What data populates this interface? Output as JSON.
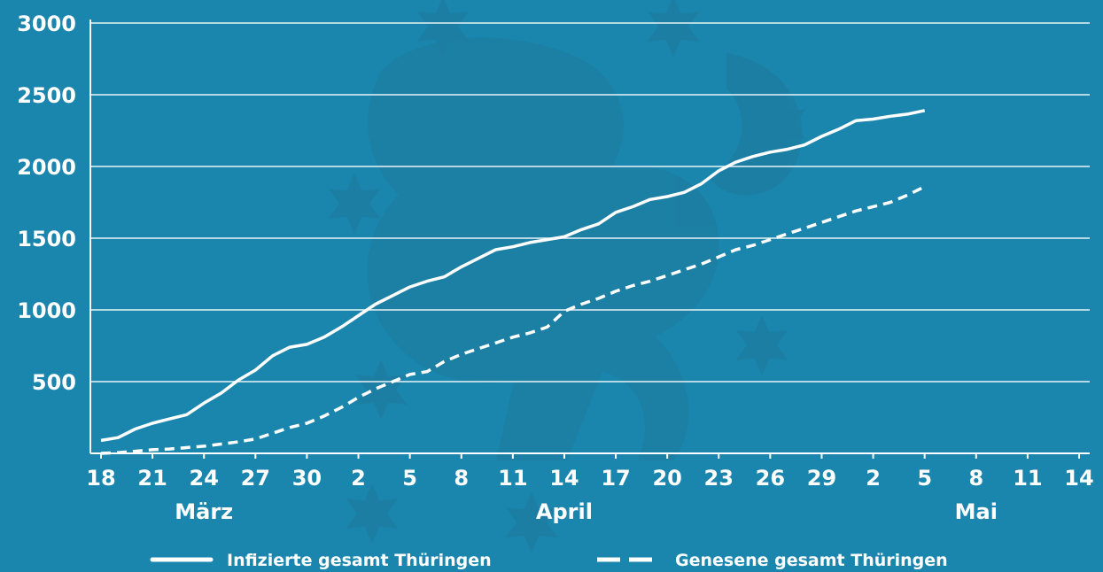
{
  "colors": {
    "background": "#1a86ad",
    "foreground": "#ffffff",
    "watermark": "#1d7ea3"
  },
  "chart_data": {
    "type": "line",
    "title": "",
    "xlabel": "",
    "ylabel": "",
    "ylim": [
      0,
      3000
    ],
    "xlim": [
      "2020-03-18",
      "2020-05-14"
    ],
    "y_ticks": [
      "500",
      "1000",
      "1500",
      "2000",
      "2500",
      "3000"
    ],
    "x_ticks": [
      {
        "date": "2020-03-18",
        "label": "18"
      },
      {
        "date": "2020-03-21",
        "label": "21"
      },
      {
        "date": "2020-03-24",
        "label": "24"
      },
      {
        "date": "2020-03-27",
        "label": "27"
      },
      {
        "date": "2020-03-30",
        "label": "30"
      },
      {
        "date": "2020-04-02",
        "label": "2"
      },
      {
        "date": "2020-04-05",
        "label": "5"
      },
      {
        "date": "2020-04-08",
        "label": "8"
      },
      {
        "date": "2020-04-11",
        "label": "11"
      },
      {
        "date": "2020-04-14",
        "label": "14"
      },
      {
        "date": "2020-04-17",
        "label": "17"
      },
      {
        "date": "2020-04-20",
        "label": "20"
      },
      {
        "date": "2020-04-23",
        "label": "23"
      },
      {
        "date": "2020-04-26",
        "label": "26"
      },
      {
        "date": "2020-04-29",
        "label": "29"
      },
      {
        "date": "2020-05-02",
        "label": "2"
      },
      {
        "date": "2020-05-05",
        "label": "5"
      },
      {
        "date": "2020-05-08",
        "label": "8"
      },
      {
        "date": "2020-05-11",
        "label": "11"
      },
      {
        "date": "2020-05-14",
        "label": "14"
      }
    ],
    "month_labels": [
      {
        "date": "2020-03-24",
        "label": "März"
      },
      {
        "date": "2020-04-14",
        "label": "April"
      },
      {
        "date": "2020-05-08",
        "label": "Mai"
      }
    ],
    "grid": true,
    "legend_position": "bottom",
    "series": [
      {
        "name": "Infizierte gesamt Thüringen",
        "style": "solid",
        "points": [
          [
            "2020-03-18",
            90
          ],
          [
            "2020-03-19",
            110
          ],
          [
            "2020-03-20",
            170
          ],
          [
            "2020-03-21",
            210
          ],
          [
            "2020-03-22",
            240
          ],
          [
            "2020-03-23",
            270
          ],
          [
            "2020-03-24",
            350
          ],
          [
            "2020-03-25",
            420
          ],
          [
            "2020-03-26",
            510
          ],
          [
            "2020-03-27",
            580
          ],
          [
            "2020-03-28",
            680
          ],
          [
            "2020-03-29",
            740
          ],
          [
            "2020-03-30",
            760
          ],
          [
            "2020-03-31",
            810
          ],
          [
            "2020-04-01",
            880
          ],
          [
            "2020-04-02",
            960
          ],
          [
            "2020-04-03",
            1040
          ],
          [
            "2020-04-04",
            1100
          ],
          [
            "2020-04-05",
            1160
          ],
          [
            "2020-04-06",
            1200
          ],
          [
            "2020-04-07",
            1230
          ],
          [
            "2020-04-08",
            1300
          ],
          [
            "2020-04-09",
            1360
          ],
          [
            "2020-04-10",
            1420
          ],
          [
            "2020-04-11",
            1440
          ],
          [
            "2020-04-12",
            1470
          ],
          [
            "2020-04-13",
            1490
          ],
          [
            "2020-04-14",
            1510
          ],
          [
            "2020-04-15",
            1560
          ],
          [
            "2020-04-16",
            1600
          ],
          [
            "2020-04-17",
            1680
          ],
          [
            "2020-04-18",
            1720
          ],
          [
            "2020-04-19",
            1770
          ],
          [
            "2020-04-20",
            1790
          ],
          [
            "2020-04-21",
            1820
          ],
          [
            "2020-04-22",
            1880
          ],
          [
            "2020-04-23",
            1970
          ],
          [
            "2020-04-24",
            2030
          ],
          [
            "2020-04-25",
            2070
          ],
          [
            "2020-04-26",
            2100
          ],
          [
            "2020-04-27",
            2120
          ],
          [
            "2020-04-28",
            2150
          ],
          [
            "2020-04-29",
            2210
          ],
          [
            "2020-04-30",
            2260
          ],
          [
            "2020-05-01",
            2320
          ],
          [
            "2020-05-02",
            2330
          ],
          [
            "2020-05-03",
            2350
          ],
          [
            "2020-05-04",
            2365
          ],
          [
            "2020-05-05",
            2390
          ]
        ]
      },
      {
        "name": "Genesene gesamt Thüringen",
        "style": "dashed",
        "points": [
          [
            "2020-03-18",
            0
          ],
          [
            "2020-03-19",
            5
          ],
          [
            "2020-03-20",
            15
          ],
          [
            "2020-03-21",
            25
          ],
          [
            "2020-03-22",
            30
          ],
          [
            "2020-03-23",
            40
          ],
          [
            "2020-03-24",
            50
          ],
          [
            "2020-03-25",
            65
          ],
          [
            "2020-03-26",
            80
          ],
          [
            "2020-03-27",
            100
          ],
          [
            "2020-03-28",
            140
          ],
          [
            "2020-03-29",
            180
          ],
          [
            "2020-03-30",
            210
          ],
          [
            "2020-03-31",
            260
          ],
          [
            "2020-04-01",
            320
          ],
          [
            "2020-04-02",
            390
          ],
          [
            "2020-04-03",
            450
          ],
          [
            "2020-04-04",
            500
          ],
          [
            "2020-04-05",
            550
          ],
          [
            "2020-04-06",
            570
          ],
          [
            "2020-04-07",
            640
          ],
          [
            "2020-04-08",
            690
          ],
          [
            "2020-04-09",
            730
          ],
          [
            "2020-04-10",
            770
          ],
          [
            "2020-04-11",
            810
          ],
          [
            "2020-04-12",
            840
          ],
          [
            "2020-04-13",
            880
          ],
          [
            "2020-04-14",
            990
          ],
          [
            "2020-04-15",
            1040
          ],
          [
            "2020-04-16",
            1080
          ],
          [
            "2020-04-17",
            1130
          ],
          [
            "2020-04-18",
            1170
          ],
          [
            "2020-04-19",
            1200
          ],
          [
            "2020-04-20",
            1240
          ],
          [
            "2020-04-21",
            1280
          ],
          [
            "2020-04-22",
            1320
          ],
          [
            "2020-04-23",
            1370
          ],
          [
            "2020-04-24",
            1420
          ],
          [
            "2020-04-25",
            1450
          ],
          [
            "2020-04-26",
            1490
          ],
          [
            "2020-04-27",
            1530
          ],
          [
            "2020-04-28",
            1570
          ],
          [
            "2020-04-29",
            1610
          ],
          [
            "2020-04-30",
            1650
          ],
          [
            "2020-05-01",
            1690
          ],
          [
            "2020-05-02",
            1720
          ],
          [
            "2020-05-03",
            1750
          ],
          [
            "2020-05-04",
            1800
          ],
          [
            "2020-05-05",
            1860
          ]
        ]
      }
    ]
  }
}
